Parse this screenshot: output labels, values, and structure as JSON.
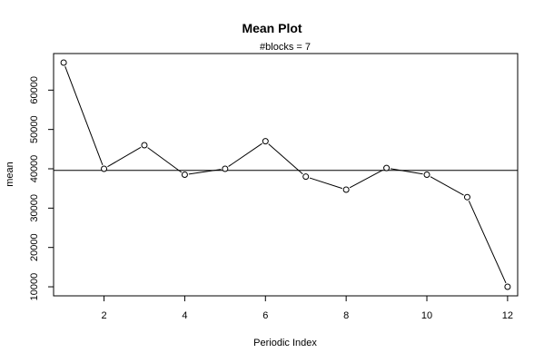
{
  "chart_data": {
    "type": "line",
    "title": "Mean Plot",
    "subtitle": "#blocks =  7",
    "xlabel": "Periodic Index",
    "ylabel": "mean",
    "x": [
      1,
      2,
      3,
      4,
      5,
      6,
      7,
      8,
      9,
      10,
      11,
      12
    ],
    "series": [
      {
        "values": [
          67000,
          40000,
          46000,
          38500,
          40000,
          47000,
          38000,
          34700,
          40200,
          38500,
          32800,
          10000
        ]
      }
    ],
    "reference_line": {
      "y": 39600
    },
    "xlim": [
      0.75,
      12.25
    ],
    "ylim": [
      7700,
      69300
    ],
    "xticks": [
      2,
      4,
      6,
      8,
      10,
      12
    ],
    "xtick_labels": [
      "2",
      "4",
      "6",
      "8",
      "10",
      "12"
    ],
    "yticks": [
      10000,
      20000,
      30000,
      40000,
      50000,
      60000
    ],
    "ytick_labels": [
      "10000",
      "20000",
      "30000",
      "40000",
      "50000",
      "60000"
    ],
    "grid": false,
    "marker": "open-circle",
    "line_color": "#000000"
  }
}
